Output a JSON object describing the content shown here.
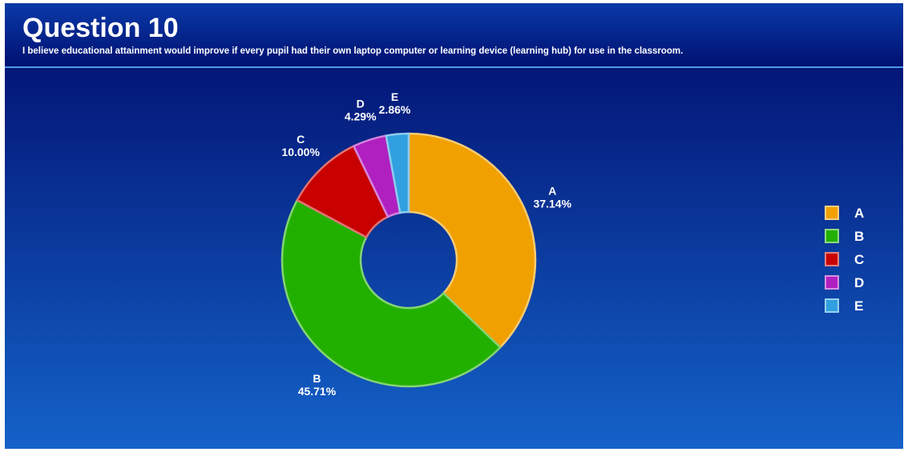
{
  "chart_data": {
    "type": "donut",
    "title": "Question 10",
    "subtitle": "I believe educational attainment would improve if every pupil had their own laptop computer or learning device (learning hub) for use in the classroom.",
    "categories": [
      "A",
      "B",
      "C",
      "D",
      "E"
    ],
    "values": [
      37.14,
      45.71,
      10.0,
      4.29,
      2.86
    ],
    "value_labels": [
      "37.14%",
      "45.71%",
      "10.00%",
      "4.29%",
      "2.86%"
    ],
    "colors": [
      "#f0a000",
      "#22b000",
      "#c80000",
      "#b020c0",
      "#30a0e0"
    ],
    "legend": "right"
  }
}
